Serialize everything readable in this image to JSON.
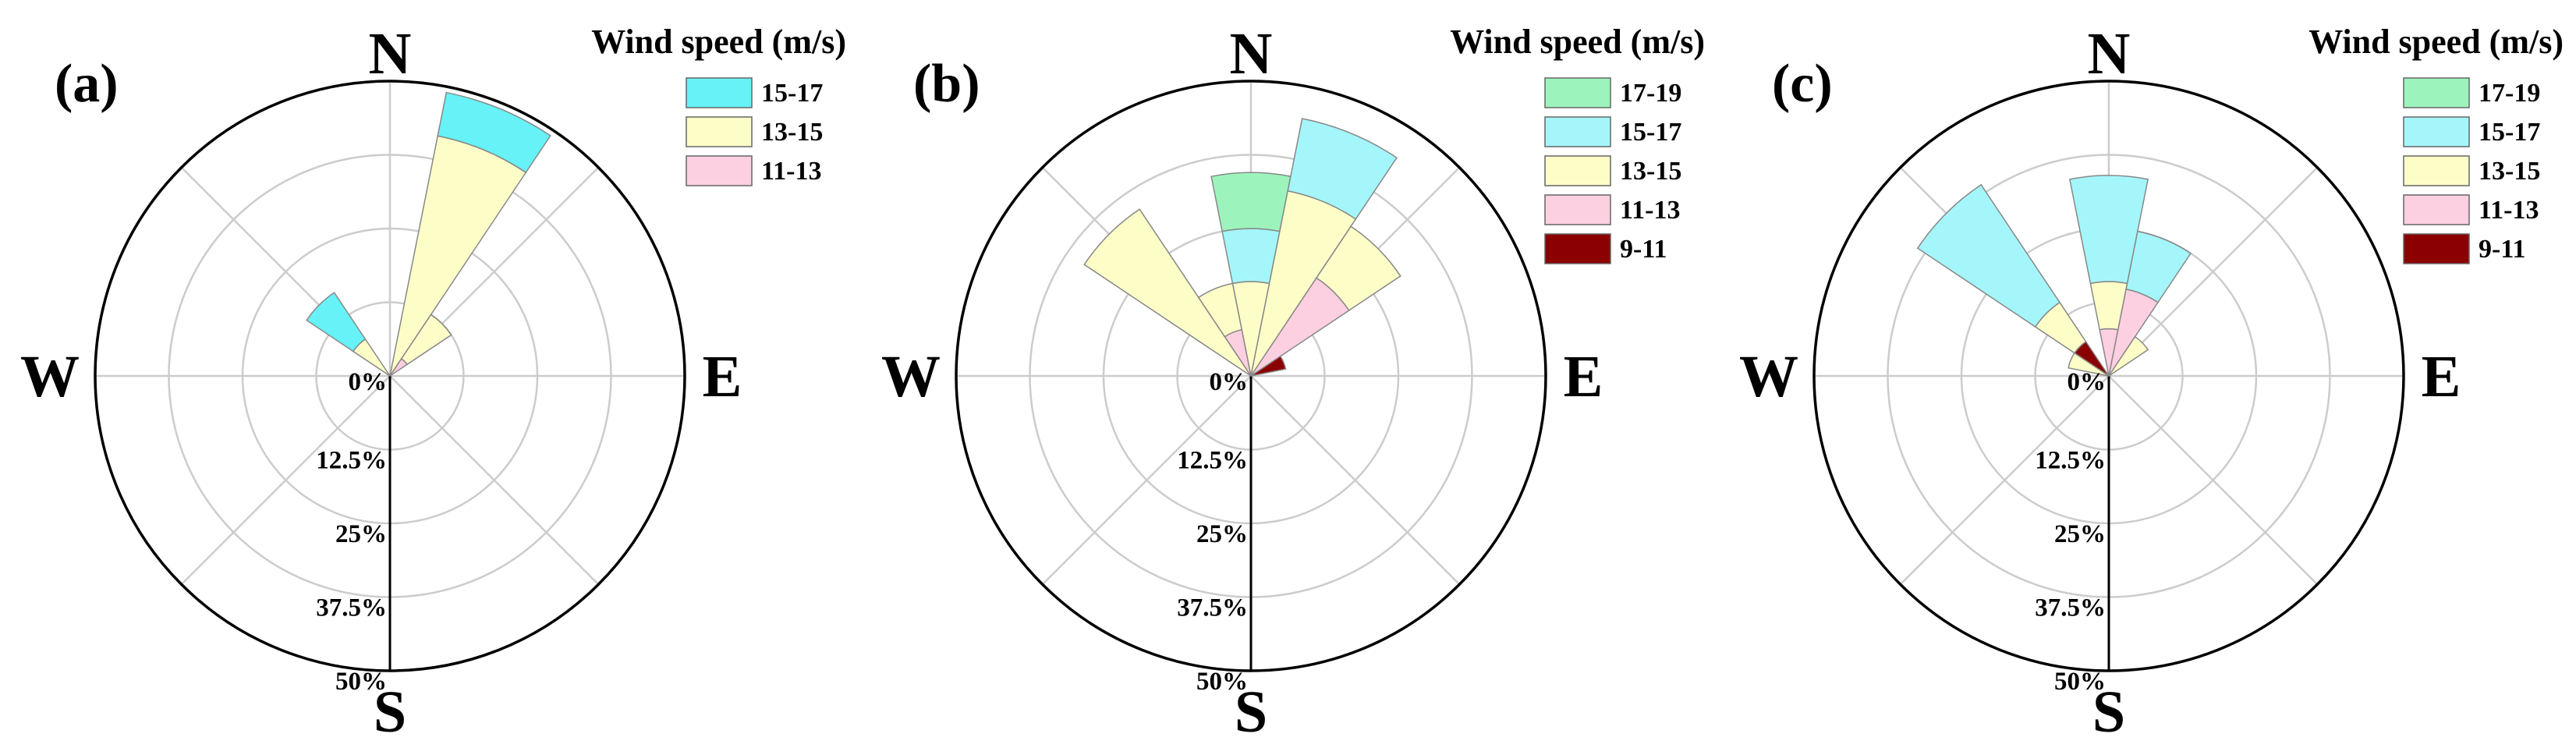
{
  "chart_data": [
    {
      "type": "polar-bar",
      "panel_label": "(a)",
      "directions": [
        "N",
        "E",
        "S",
        "W"
      ],
      "radial_labels": [
        "0%",
        "12.5%",
        "25%",
        "37.5%",
        "50%"
      ],
      "rlim": [
        0,
        50
      ],
      "legend_title": "Wind speed (m/s)",
      "legend": [
        {
          "name": "15-17",
          "color": "#66f2f6"
        },
        {
          "name": "13-15",
          "color": "#fdfdc8"
        },
        {
          "name": "11-13",
          "color": "#fccfe1"
        }
      ],
      "sectors": [
        {
          "direction_deg": 22.5,
          "stack": [
            {
              "bin": "11-13",
              "value": 0
            },
            {
              "bin": "13-15",
              "value": 41.5
            },
            {
              "bin": "15-17",
              "value": 7.5
            }
          ]
        },
        {
          "direction_deg": 45,
          "stack": [
            {
              "bin": "11-13",
              "value": 3.5
            },
            {
              "bin": "13-15",
              "value": 9
            }
          ]
        },
        {
          "direction_deg": 315,
          "stack": [
            {
              "bin": "13-15",
              "value": 7.5
            },
            {
              "bin": "15-17",
              "value": 9.5
            }
          ]
        }
      ]
    },
    {
      "type": "polar-bar",
      "panel_label": "(b)",
      "directions": [
        "N",
        "E",
        "S",
        "W"
      ],
      "radial_labels": [
        "0%",
        "12.5%",
        "25%",
        "37.5%",
        "50%"
      ],
      "rlim": [
        0,
        50
      ],
      "legend_title": "Wind speed (m/s)",
      "legend": [
        {
          "name": "17-19",
          "color": "#9cf4bc"
        },
        {
          "name": "15-17",
          "color": "#a4f6fa"
        },
        {
          "name": "13-15",
          "color": "#fdfdc8"
        },
        {
          "name": "11-13",
          "color": "#fccfe1"
        },
        {
          "name": "9-11",
          "color": "#8b0000"
        }
      ],
      "sectors": [
        {
          "direction_deg": 0,
          "stack": [
            {
              "bin": "13-15",
              "value": 16
            },
            {
              "bin": "15-17",
              "value": 9
            },
            {
              "bin": "17-19",
              "value": 9.5
            }
          ]
        },
        {
          "direction_deg": 22.5,
          "stack": [
            {
              "bin": "13-15",
              "value": 32
            },
            {
              "bin": "15-17",
              "value": 12.5
            }
          ]
        },
        {
          "direction_deg": 45,
          "stack": [
            {
              "bin": "11-13",
              "value": 20
            },
            {
              "bin": "13-15",
              "value": 10.5
            }
          ]
        },
        {
          "direction_deg": 67.5,
          "stack": [
            {
              "bin": "9-11",
              "value": 6
            }
          ]
        },
        {
          "direction_deg": 315,
          "stack": [
            {
              "bin": "13-15",
              "value": 34
            }
          ]
        },
        {
          "direction_deg": 337.5,
          "stack": [
            {
              "bin": "11-13",
              "value": 8
            },
            {
              "bin": "13-15",
              "value": 8
            }
          ]
        }
      ]
    },
    {
      "type": "polar-bar",
      "panel_label": "(c)",
      "directions": [
        "N",
        "E",
        "S",
        "W"
      ],
      "radial_labels": [
        "0%",
        "12.5%",
        "25%",
        "37.5%",
        "50%"
      ],
      "rlim": [
        0,
        50
      ],
      "legend_title": "Wind speed (m/s)",
      "legend": [
        {
          "name": "17-19",
          "color": "#9cf4bc"
        },
        {
          "name": "15-17",
          "color": "#a4f6fa"
        },
        {
          "name": "13-15",
          "color": "#fdfdc8"
        },
        {
          "name": "11-13",
          "color": "#fccfe1"
        },
        {
          "name": "9-11",
          "color": "#8b0000"
        }
      ],
      "sectors": [
        {
          "direction_deg": 0,
          "stack": [
            {
              "bin": "11-13",
              "value": 8
            },
            {
              "bin": "13-15",
              "value": 8
            },
            {
              "bin": "15-17",
              "value": 18
            }
          ]
        },
        {
          "direction_deg": 22.5,
          "stack": [
            {
              "bin": "11-13",
              "value": 15
            },
            {
              "bin": "15-17",
              "value": 10
            }
          ]
        },
        {
          "direction_deg": 45,
          "stack": [
            {
              "bin": "13-15",
              "value": 8
            }
          ]
        },
        {
          "direction_deg": 292.5,
          "stack": [
            {
              "bin": "13-15",
              "value": 7
            }
          ]
        },
        {
          "direction_deg": 315,
          "stack": [
            {
              "bin": "9-11",
              "value": 7
            },
            {
              "bin": "13-15",
              "value": 8
            },
            {
              "bin": "15-17",
              "value": 24
            }
          ]
        }
      ]
    }
  ]
}
